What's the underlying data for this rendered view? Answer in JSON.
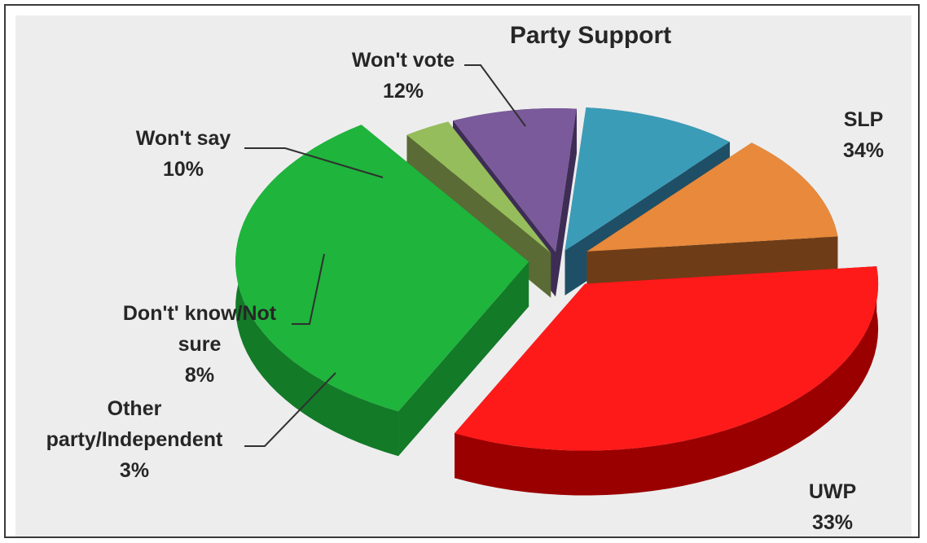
{
  "chart_data": {
    "type": "pie",
    "style": "3d-exploded",
    "title": "Party Support",
    "slices": [
      {
        "label": "SLP",
        "value": 34,
        "value_label": "34%",
        "color": "#ff1a1a",
        "side_color": "#9b0000"
      },
      {
        "label": "UWP",
        "value": 33,
        "value_label": "33%",
        "color": "#1fb43c",
        "side_color": "#137a28"
      },
      {
        "label": "Other party/Independent",
        "value": 3,
        "value_label": "3%",
        "color": "#96bd5b",
        "side_color": "#5b6b35"
      },
      {
        "label": "Don't' know/Not sure",
        "value": 8,
        "value_label": "8%",
        "color": "#7a5a9a",
        "side_color": "#3d2d55"
      },
      {
        "label": "Won't say",
        "value": 10,
        "value_label": "10%",
        "color": "#3b9cb8",
        "side_color": "#1f4f66"
      },
      {
        "label": "Won't vote",
        "value": 12,
        "value_label": "12%",
        "color": "#e8893b",
        "side_color": "#6e3d18"
      }
    ]
  }
}
